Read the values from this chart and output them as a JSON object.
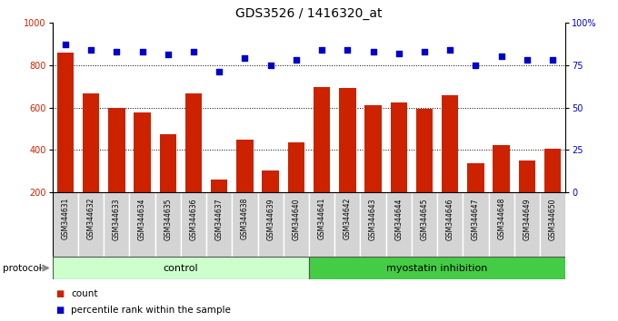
{
  "title": "GDS3526 / 1416320_at",
  "categories": [
    "GSM344631",
    "GSM344632",
    "GSM344633",
    "GSM344634",
    "GSM344635",
    "GSM344636",
    "GSM344637",
    "GSM344638",
    "GSM344639",
    "GSM344640",
    "GSM344641",
    "GSM344642",
    "GSM344643",
    "GSM344644",
    "GSM344645",
    "GSM344646",
    "GSM344647",
    "GSM344648",
    "GSM344649",
    "GSM344650"
  ],
  "bar_values": [
    860,
    665,
    600,
    575,
    475,
    665,
    260,
    450,
    305,
    435,
    695,
    690,
    610,
    625,
    595,
    660,
    340,
    425,
    350,
    405
  ],
  "dot_values": [
    87,
    84,
    83,
    83,
    81,
    83,
    71,
    79,
    75,
    78,
    84,
    84,
    83,
    82,
    83,
    84,
    75,
    80,
    78,
    78
  ],
  "bar_color": "#cc2200",
  "dot_color": "#0000cc",
  "ylim_left": [
    200,
    1000
  ],
  "ylim_right": [
    0,
    100
  ],
  "yticks_left": [
    200,
    400,
    600,
    800,
    1000
  ],
  "yticks_right": [
    0,
    25,
    50,
    75,
    100
  ],
  "grid_values": [
    400,
    600,
    800
  ],
  "control_count": 10,
  "myostatin_count": 10,
  "protocol_label": "protocol",
  "control_label": "control",
  "myostatin_label": "myostatin inhibition",
  "legend_bar_label": "count",
  "legend_dot_label": "percentile rank within the sample",
  "control_color": "#ccffcc",
  "myostatin_color": "#44cc44",
  "title_fontsize": 10,
  "tick_fontsize": 7,
  "label_fontsize": 8,
  "cell_color": "#d4d4d4"
}
